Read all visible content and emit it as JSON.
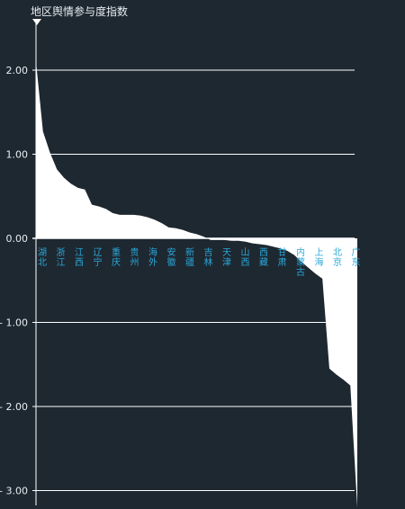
{
  "chart_data": {
    "type": "area",
    "title": "地区舆情参与度指数",
    "categories": [
      "湖北",
      "浙江",
      "江西",
      "辽宁",
      "重庆",
      "贵州",
      "海外",
      "安徽",
      "新疆",
      "吉林",
      "天津",
      "山西",
      "西藏",
      "甘肃",
      "内蒙古",
      "上海",
      "北京",
      "广东"
    ],
    "x_tick_labels": [
      "湖北",
      "浙江",
      "江西",
      "辽宁",
      "重庆",
      "贵州",
      "海外",
      "安徽",
      "新疆",
      "吉林",
      "天津",
      "山西",
      "西藏",
      "甘肃",
      "内蒙古",
      "上海",
      "北京",
      "广东"
    ],
    "values": [
      2.1,
      1.27,
      0.82,
      0.58,
      0.38,
      0.28,
      0.27,
      0.2,
      0.12,
      0.05,
      -0.02,
      -0.03,
      -0.06,
      -0.12,
      -0.28,
      -0.48,
      -1.75,
      -3.2
    ],
    "profile": [
      2.1,
      1.27,
      1.02,
      0.82,
      0.72,
      0.65,
      0.6,
      0.58,
      0.4,
      0.38,
      0.35,
      0.3,
      0.28,
      0.28,
      0.28,
      0.27,
      0.25,
      0.22,
      0.18,
      0.13,
      0.12,
      0.1,
      0.07,
      0.05,
      0.02,
      -0.02,
      -0.02,
      -0.02,
      -0.03,
      -0.03,
      -0.04,
      -0.06,
      -0.07,
      -0.08,
      -0.1,
      -0.12,
      -0.15,
      -0.2,
      -0.28,
      -0.35,
      -0.42,
      -0.48,
      -1.55,
      -1.62,
      -1.68,
      -1.75,
      -3.2
    ],
    "y_ticks": [
      2.0,
      1.0,
      0.0,
      -1.0,
      -2.0,
      -3.0
    ],
    "y_tick_labels": [
      "2.00",
      "1.00",
      "0.00",
      "- 1.00",
      "- 2.00",
      "- 3.00"
    ],
    "ylim": [
      -3.2,
      2.2
    ],
    "grid": true,
    "colors": {
      "background": "#1e2831",
      "area": "#ffffff",
      "axis": "#ffffff",
      "grid": "#ffffff",
      "tick_text": "#e8eef2",
      "category_text": "#2aa7d9"
    }
  }
}
